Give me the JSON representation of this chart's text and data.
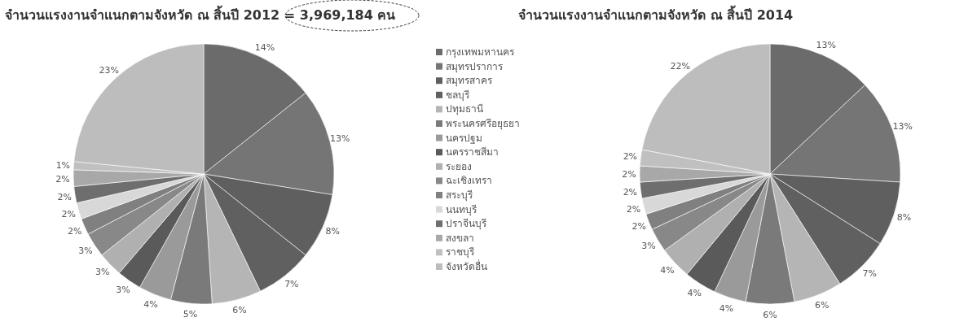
{
  "chart_data": [
    {
      "type": "pie",
      "title": "จำนวนแรงงานจำแนกตามจังหวัด ณ สิ้นปี 2012 = 3,969,184 คน",
      "categories": [
        "กรุงเทพมหานคร",
        "สมุทรปราการ",
        "สมุทรสาคร",
        "ชลบุรี",
        "ปทุมธานี",
        "พระนครศรีอยุธยา",
        "นครปฐม",
        "นครราชสีมา",
        "ระยอง",
        "ฉะเชิงเทรา",
        "สระบุรี",
        "นนทบุรี",
        "ปราจีนบุรี",
        "สงขลา",
        "ราชบุรี",
        "จังหวัดอื่น"
      ],
      "values": [
        14,
        13,
        8,
        7,
        6,
        5,
        4,
        3,
        3,
        3,
        2,
        2,
        2,
        2,
        1,
        23
      ],
      "colors": [
        "#6b6b6b",
        "#757575",
        "#5f5f5f",
        "#606060",
        "#b5b5b5",
        "#7a7a7a",
        "#9a9a9a",
        "#5a5a5a",
        "#b0b0b0",
        "#888888",
        "#808080",
        "#d8d8d8",
        "#6e6e6e",
        "#a8a8a8",
        "#c0c0c0",
        "#bdbdbd"
      ],
      "value_labels": [
        "14%",
        "13%",
        "8%",
        "7%",
        "6%",
        "5%",
        "4%",
        "3%",
        "3%",
        "3%",
        "2%",
        "2%",
        "2%",
        "2%",
        "1%",
        "23%"
      ],
      "legend": "right"
    },
    {
      "type": "pie",
      "title": "จำนวนแรงงานจำแนกตามจังหวัด ณ สิ้นปี 2014",
      "values": [
        13,
        13,
        8,
        7,
        6,
        6,
        4,
        4,
        4,
        3,
        2,
        2,
        2,
        2,
        2,
        22
      ],
      "colors": [
        "#6b6b6b",
        "#757575",
        "#5f5f5f",
        "#606060",
        "#b5b5b5",
        "#7a7a7a",
        "#9a9a9a",
        "#5a5a5a",
        "#b0b0b0",
        "#888888",
        "#808080",
        "#d8d8d8",
        "#6e6e6e",
        "#a8a8a8",
        "#c0c0c0",
        "#bdbdbd"
      ],
      "value_labels": [
        "13%",
        "13%",
        "8%",
        "7%",
        "6%",
        "6%",
        "4%",
        "4%",
        "4%",
        "3%",
        "2%",
        "2%",
        "2%",
        "2%",
        "2%",
        "22%"
      ]
    }
  ]
}
